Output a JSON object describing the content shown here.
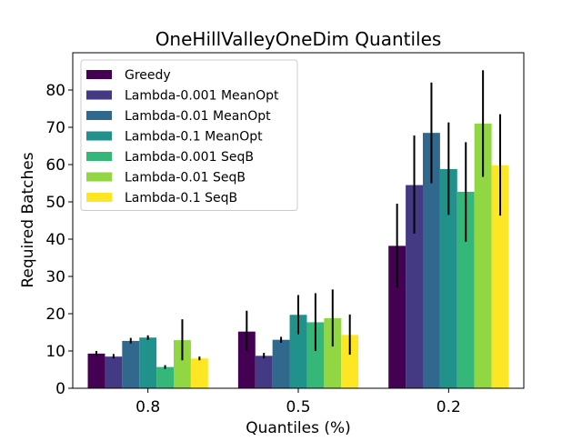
{
  "chart_data": {
    "type": "bar",
    "title": "OneHillValleyOneDim Quantiles",
    "xlabel": "Quantiles (%)",
    "ylabel": "Required Batches",
    "categories": [
      "0.8",
      "0.5",
      "0.2"
    ],
    "ylim": [
      0,
      90
    ],
    "yticks": [
      0,
      10,
      20,
      30,
      40,
      50,
      60,
      70,
      80
    ],
    "grid": false,
    "legend_position": "top-left",
    "series": [
      {
        "name": "Greedy",
        "color": "#440154",
        "values": [
          9.3,
          15.2,
          38.2
        ],
        "err_low": [
          8.5,
          10.0,
          27.0
        ],
        "err_high": [
          10.0,
          20.8,
          49.5
        ]
      },
      {
        "name": "Lambda-0.001 MeanOpt",
        "color": "#443983",
        "values": [
          8.5,
          8.7,
          54.5
        ],
        "err_low": [
          8.0,
          8.0,
          41.5
        ],
        "err_high": [
          9.2,
          9.5,
          67.8
        ]
      },
      {
        "name": "Lambda-0.01 MeanOpt",
        "color": "#31688e",
        "values": [
          12.7,
          13.0,
          68.5
        ],
        "err_low": [
          12.0,
          12.2,
          55.0
        ],
        "err_high": [
          13.5,
          13.8,
          82.0
        ]
      },
      {
        "name": "Lambda-0.1 MeanOpt",
        "color": "#21918c",
        "values": [
          13.6,
          19.7,
          58.8
        ],
        "err_low": [
          13.0,
          14.5,
          46.5
        ],
        "err_high": [
          14.2,
          25.0,
          71.3
        ]
      },
      {
        "name": "Lambda-0.001 SeqB",
        "color": "#35b779",
        "values": [
          5.7,
          17.7,
          52.7
        ],
        "err_low": [
          5.2,
          10.0,
          39.3
        ],
        "err_high": [
          6.2,
          25.5,
          66.0
        ]
      },
      {
        "name": "Lambda-0.01 SeqB",
        "color": "#90d743",
        "values": [
          12.9,
          18.8,
          71.0
        ],
        "err_low": [
          7.5,
          11.2,
          56.7
        ],
        "err_high": [
          18.5,
          26.5,
          85.3
        ]
      },
      {
        "name": "Lambda-0.1 SeqB",
        "color": "#fde725",
        "values": [
          8.0,
          14.3,
          59.8
        ],
        "err_low": [
          7.5,
          9.0,
          46.3
        ],
        "err_high": [
          8.5,
          19.8,
          73.5
        ]
      }
    ]
  }
}
